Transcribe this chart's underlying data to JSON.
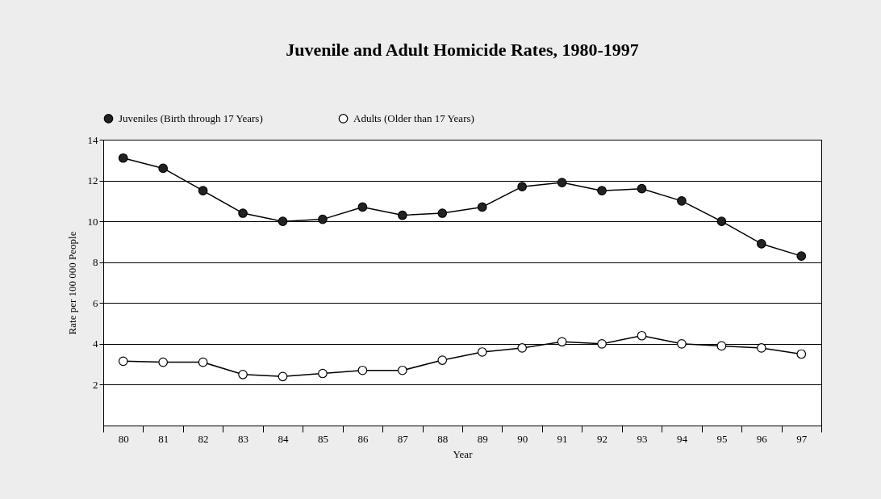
{
  "chart_data": {
    "type": "line",
    "title": "Juvenile and Adult Homicide Rates, 1980-1997",
    "xlabel": "Year",
    "ylabel": "Rate per 100 000 People",
    "categories": [
      "80",
      "81",
      "82",
      "83",
      "84",
      "85",
      "86",
      "87",
      "88",
      "89",
      "90",
      "91",
      "92",
      "93",
      "94",
      "95",
      "96",
      "97"
    ],
    "series": [
      {
        "name": "Juveniles (Birth through 17 Years)",
        "color": "#222222",
        "values": [
          13.1,
          12.6,
          11.5,
          10.4,
          10.0,
          10.1,
          10.7,
          10.3,
          10.4,
          10.7,
          11.7,
          11.9,
          11.5,
          11.6,
          11.0,
          10.0,
          8.9,
          8.3
        ]
      },
      {
        "name": "Adults (Older than 17 Years)",
        "color": "#ffffff",
        "values": [
          3.15,
          3.1,
          3.1,
          2.5,
          2.4,
          2.55,
          2.7,
          2.7,
          3.2,
          3.6,
          3.8,
          4.1,
          4.0,
          4.4,
          4.0,
          3.9,
          3.8,
          3.5
        ]
      }
    ],
    "ylim": [
      0,
      14
    ],
    "yticks": [
      2,
      4,
      6,
      8,
      10,
      12,
      14
    ],
    "grid": "y",
    "legend": "top",
    "marker": "circle",
    "line_style": "solid"
  }
}
